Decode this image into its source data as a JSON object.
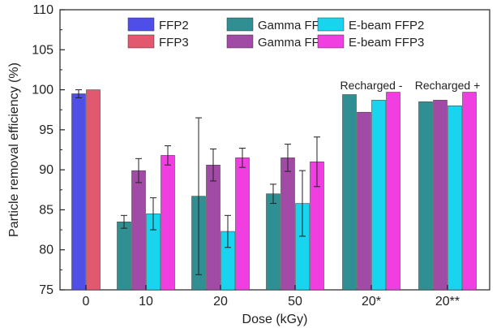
{
  "chart_data": {
    "type": "bar",
    "xlabel": "Dose  (kGy)",
    "ylabel": "Particle removal efficiency  (%)",
    "ylim": [
      75,
      110
    ],
    "yticks": [
      75,
      80,
      85,
      90,
      95,
      100,
      105,
      110
    ],
    "categories": [
      "0",
      "10",
      "20",
      "50",
      "20*",
      "20**"
    ],
    "legend_position": "top-center",
    "annotations": [
      {
        "category": "20*",
        "text": "Recharged -"
      },
      {
        "category": "20**",
        "text": "Recharged +"
      }
    ],
    "series": [
      {
        "name": "FFP2",
        "color": "#4f4fe8",
        "values": [
          99.5,
          null,
          null,
          null,
          null,
          null
        ],
        "errors": [
          0.5,
          null,
          null,
          null,
          null,
          null
        ]
      },
      {
        "name": "FFP3",
        "color": "#e2586f",
        "values": [
          100.0,
          null,
          null,
          null,
          null,
          null
        ],
        "errors": [
          null,
          null,
          null,
          null,
          null,
          null
        ]
      },
      {
        "name": "Gamma FFP2",
        "color": "#2f8f93",
        "values": [
          null,
          83.5,
          86.7,
          87.0,
          99.4,
          98.5
        ],
        "errors": [
          null,
          0.8,
          9.8,
          1.2,
          null,
          null
        ]
      },
      {
        "name": "Gamma FFP3",
        "color": "#a14ba6",
        "values": [
          null,
          89.9,
          90.6,
          91.5,
          97.2,
          98.7
        ],
        "errors": [
          null,
          1.5,
          2.0,
          1.7,
          null,
          null
        ]
      },
      {
        "name": "E-beam FFP2",
        "color": "#19d4ee",
        "values": [
          null,
          84.5,
          82.3,
          85.8,
          98.7,
          98.0
        ],
        "errors": [
          null,
          2.0,
          2.0,
          4.1,
          null,
          null
        ]
      },
      {
        "name": "E-beam FFP3",
        "color": "#f03ee0",
        "values": [
          null,
          91.8,
          91.5,
          91.0,
          99.7,
          99.7
        ],
        "errors": [
          null,
          1.2,
          1.2,
          3.1,
          null,
          null
        ]
      }
    ]
  }
}
